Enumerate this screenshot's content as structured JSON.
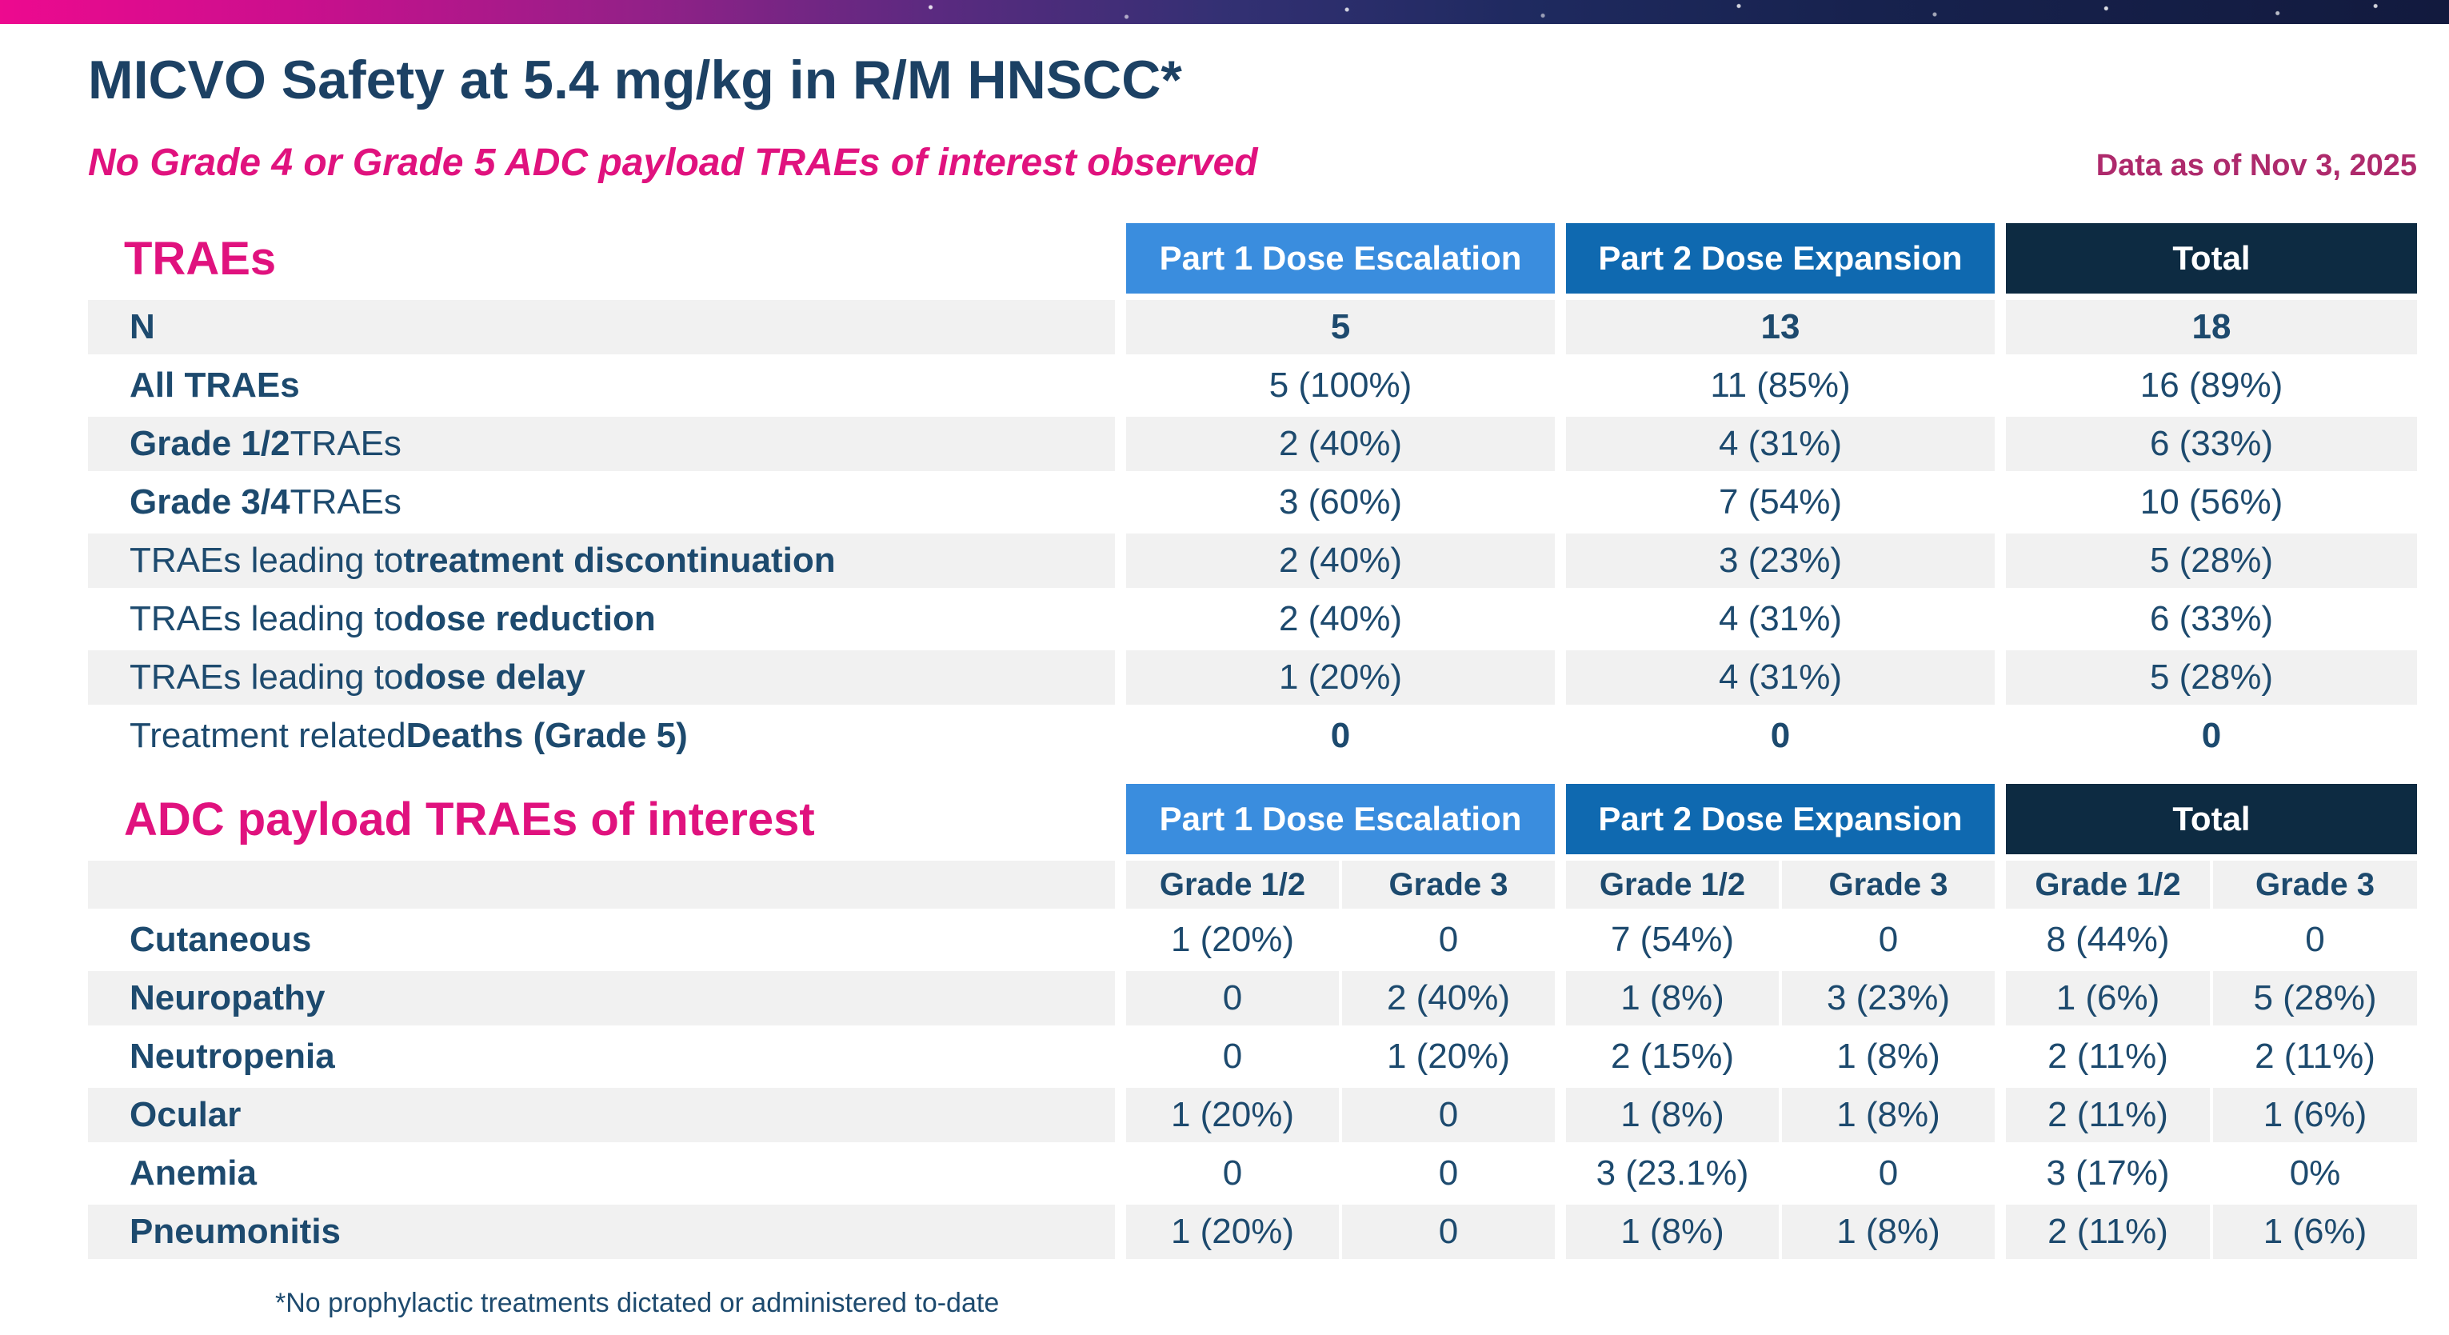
{
  "header": {
    "title": "MICVO Safety at 5.4 mg/kg in R/M HNSCC*",
    "subtitle": "No Grade 4 or Grade 5 ADC payload TRAEs of interest observed",
    "data_as_of": "Data as of Nov 3, 2025"
  },
  "colors": {
    "part1_header": "#3a8dde",
    "part2_header": "#0f69b0",
    "total_header": "#0d2b42",
    "magenta_accent": "#e0127e",
    "data_as_of_magenta": "#ae2a6c",
    "navy_text": "#1d4a6e",
    "title_navy": "#1c4164",
    "row_stripe_gray": "#f1f1f1",
    "banner_gradient_left": "#ed0a8f",
    "banner_gradient_right": "#121a3e"
  },
  "columns": [
    {
      "label": "Part 1 Dose Escalation"
    },
    {
      "label": "Part 2 Dose Expansion"
    },
    {
      "label": "Total"
    }
  ],
  "grade_subheaders": {
    "g12": "Grade 1/2",
    "g3": "Grade 3"
  },
  "tables": {
    "traes": {
      "section_title": "TRAEs",
      "rows": [
        {
          "pre": "",
          "bold": "N",
          "post": "",
          "values": [
            "5",
            "13",
            "18"
          ]
        },
        {
          "pre": "",
          "bold": "All TRAEs",
          "post": "",
          "values": [
            "5 (100%)",
            "11 (85%)",
            "16 (89%)"
          ]
        },
        {
          "pre": "",
          "bold": "Grade 1/2",
          "post": " TRAEs",
          "values": [
            "2 (40%)",
            "4 (31%)",
            "6 (33%)"
          ]
        },
        {
          "pre": "",
          "bold": "Grade 3/4",
          "post": " TRAEs",
          "values": [
            "3 (60%)",
            "7 (54%)",
            "10 (56%)"
          ]
        },
        {
          "pre": "TRAEs leading to ",
          "bold": "treatment discontinuation",
          "post": "",
          "values": [
            "2 (40%)",
            "3 (23%)",
            "5 (28%)"
          ]
        },
        {
          "pre": "TRAEs leading to ",
          "bold": "dose reduction",
          "post": "",
          "values": [
            "2 (40%)",
            "4 (31%)",
            "6 (33%)"
          ]
        },
        {
          "pre": "TRAEs leading to ",
          "bold": "dose delay",
          "post": "",
          "values": [
            "1 (20%)",
            "4 (31%)",
            "5 (28%)"
          ]
        },
        {
          "pre": "Treatment related ",
          "bold": "Deaths (Grade 5)",
          "post": "",
          "values": [
            "0",
            "0",
            "0"
          ]
        }
      ]
    },
    "adc": {
      "section_title": "ADC payload TRAEs of interest",
      "rows": [
        {
          "label": "Cutaneous",
          "values": [
            "1 (20%)",
            "0",
            "7 (54%)",
            "0",
            "8 (44%)",
            "0"
          ]
        },
        {
          "label": "Neuropathy",
          "values": [
            "0",
            "2 (40%)",
            "1 (8%)",
            "3 (23%)",
            "1 (6%)",
            "5 (28%)"
          ]
        },
        {
          "label": "Neutropenia",
          "values": [
            "0",
            "1 (20%)",
            "2 (15%)",
            "1 (8%)",
            "2 (11%)",
            "2 (11%)"
          ]
        },
        {
          "label": "Ocular",
          "values": [
            "1 (20%)",
            "0",
            "1 (8%)",
            "1 (8%)",
            "2 (11%)",
            "1 (6%)"
          ]
        },
        {
          "label": "Anemia",
          "values": [
            "0",
            "0",
            "3 (23.1%)",
            "0",
            "3 (17%)",
            "0%"
          ]
        },
        {
          "label": "Pneumonitis",
          "values": [
            "1 (20%)",
            "0",
            "1 (8%)",
            "1 (8%)",
            "2 (11%)",
            "1 (6%)"
          ]
        }
      ]
    }
  },
  "footnote": "*No prophylactic treatments dictated or administered to-date"
}
